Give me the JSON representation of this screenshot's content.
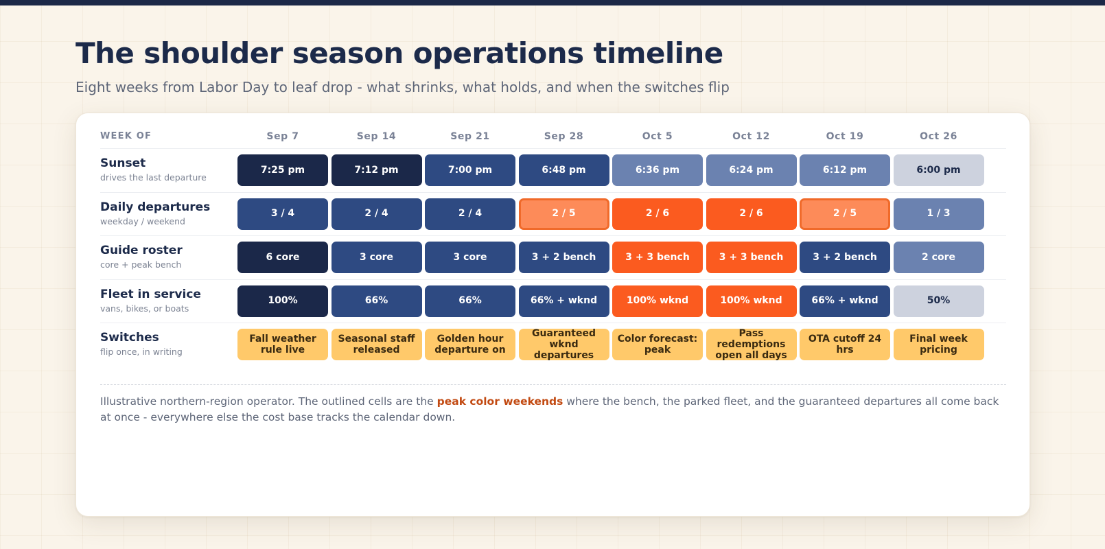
{
  "title": "The shoulder season operations timeline",
  "subtitle": "Eight weeks from Labor Day to leaf drop - what shrinks, what holds, and when the switches flip",
  "table": {
    "header_label": "WEEK OF",
    "weeks": [
      "Sep 7",
      "Sep 14",
      "Sep 21",
      "Sep 28",
      "Oct 5",
      "Oct 12",
      "Oct 19",
      "Oct 26"
    ]
  },
  "rows": [
    {
      "name": "Sunset",
      "sub": "drives the last departure",
      "cells": [
        {
          "text": "7:25 pm",
          "tone": "navy"
        },
        {
          "text": "7:12 pm",
          "tone": "navy"
        },
        {
          "text": "7:00 pm",
          "tone": "blue"
        },
        {
          "text": "6:48 pm",
          "tone": "blue"
        },
        {
          "text": "6:36 pm",
          "tone": "slate"
        },
        {
          "text": "6:24 pm",
          "tone": "slate"
        },
        {
          "text": "6:12 pm",
          "tone": "slate"
        },
        {
          "text": "6:00 pm",
          "tone": "pale"
        }
      ]
    },
    {
      "name": "Daily departures",
      "sub": "weekday / weekend",
      "cells": [
        {
          "text": "3 / 4",
          "tone": "blue"
        },
        {
          "text": "2 / 4",
          "tone": "blue"
        },
        {
          "text": "2 / 4",
          "tone": "blue"
        },
        {
          "text": "2 / 5",
          "tone": "lightorange"
        },
        {
          "text": "2 / 6",
          "tone": "orange"
        },
        {
          "text": "2 / 6",
          "tone": "orange"
        },
        {
          "text": "2 / 5",
          "tone": "lightorange"
        },
        {
          "text": "1 / 3",
          "tone": "slate"
        }
      ]
    },
    {
      "name": "Guide roster",
      "sub": "core + peak bench",
      "cells": [
        {
          "text": "6 core",
          "tone": "navy"
        },
        {
          "text": "3 core",
          "tone": "blue"
        },
        {
          "text": "3 core",
          "tone": "blue"
        },
        {
          "text": "3 + 2 bench",
          "tone": "blue"
        },
        {
          "text": "3 + 3 bench",
          "tone": "orange"
        },
        {
          "text": "3 + 3 bench",
          "tone": "orange"
        },
        {
          "text": "3 + 2 bench",
          "tone": "blue"
        },
        {
          "text": "2 core",
          "tone": "slate"
        }
      ]
    },
    {
      "name": "Fleet in service",
      "sub": "vans, bikes, or boats",
      "cells": [
        {
          "text": "100%",
          "tone": "navy"
        },
        {
          "text": "66%",
          "tone": "blue"
        },
        {
          "text": "66%",
          "tone": "blue"
        },
        {
          "text": "66% + wknd",
          "tone": "blue"
        },
        {
          "text": "100% wknd",
          "tone": "orange"
        },
        {
          "text": "100% wknd",
          "tone": "orange"
        },
        {
          "text": "66% + wknd",
          "tone": "blue"
        },
        {
          "text": "50%",
          "tone": "pale"
        }
      ]
    },
    {
      "name": "Switches",
      "sub": "flip once, in writing",
      "cells": [
        {
          "text": "Fall weather rule live",
          "tone": "switch"
        },
        {
          "text": "Seasonal staff released",
          "tone": "switch"
        },
        {
          "text": "Golden hour departure on",
          "tone": "switch"
        },
        {
          "text": "Guaranteed wknd departures",
          "tone": "switch"
        },
        {
          "text": "Color forecast: peak",
          "tone": "switch"
        },
        {
          "text": "Pass redemptions open all days",
          "tone": "switch"
        },
        {
          "text": "OTA cutoff 24 hrs",
          "tone": "switch"
        },
        {
          "text": "Final week pricing",
          "tone": "switch"
        }
      ]
    }
  ],
  "footnote": {
    "before": "Illustrative northern-region operator. The outlined cells are the ",
    "highlight": "peak color weekends",
    "after": " where the bench, the parked fleet, and the guaranteed departures all come back at once - everywhere else the cost base tracks the calendar down."
  },
  "tone_colors": {
    "navy": "#1b2849",
    "blue": "#2e4a82",
    "slate": "#6b82b0",
    "pale": "#cdd2de",
    "orange": "#fb5b1f",
    "lightorange": "#fd8b59",
    "switch": "#ffc96a",
    "outline": "#f06a2a",
    "highlight": "#c24a12"
  }
}
